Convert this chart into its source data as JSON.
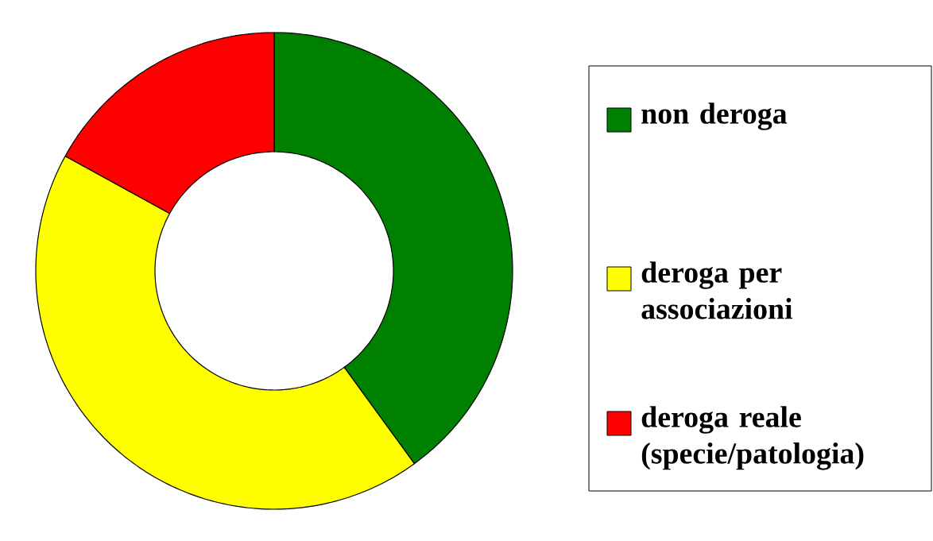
{
  "chart_data": {
    "type": "donut",
    "categories": [
      "non deroga",
      "deroga per associazioni",
      "deroga reale (specie/patologia)"
    ],
    "values": [
      40,
      43,
      17
    ],
    "colors": [
      "#008000",
      "#ffff00",
      "#ff0000"
    ],
    "legend": "right"
  }
}
